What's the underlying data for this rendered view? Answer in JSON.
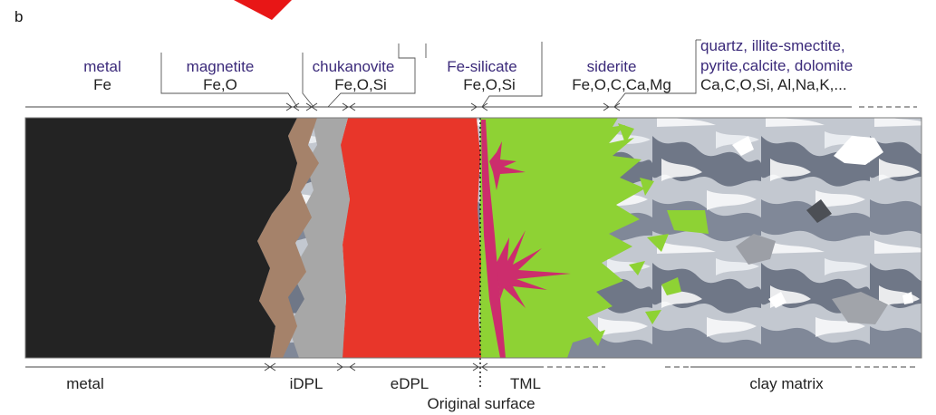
{
  "panel_label": "b",
  "top_labels": [
    {
      "name": "metal",
      "composition": "Fe"
    },
    {
      "name": "magnetite",
      "composition": "Fe,O"
    },
    {
      "name": "chukanovite",
      "composition": "Fe,O,Si"
    },
    {
      "name": "Fe-silicate",
      "composition": "Fe,O,Si"
    },
    {
      "name": "siderite",
      "composition": "Fe,O,C,Ca,Mg"
    },
    {
      "name_line1": "quartz, illite-smectite,",
      "name_line2": "pyrite,calcite, dolomite",
      "composition": "Ca,C,O,Si, Al,Na,K,..."
    }
  ],
  "bottom_labels": {
    "metal": "metal",
    "idpl": "iDPL",
    "edpl": "eDPL",
    "tml": "TML",
    "clay": "clay matrix",
    "original_surface": "Original surface"
  },
  "colors": {
    "metal": "#232323",
    "magnetite": "#a5826a",
    "chukanovite": "#a7a7a7",
    "fe_silicate": "#e8362a",
    "siderite": "#8ed234",
    "pink_crystals": "#cc2d6d",
    "clay": "#b8bec8",
    "label_purple": "#3b2a7a",
    "annotation_red": "#e81616"
  }
}
